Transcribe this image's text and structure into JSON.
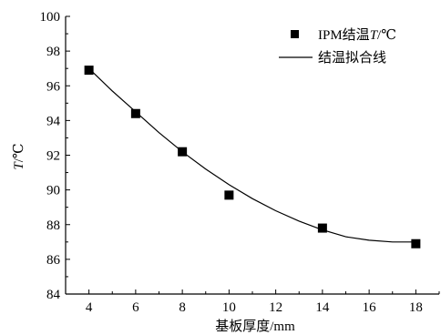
{
  "chart_data": {
    "type": "scatter",
    "xlabel": "基板厚度/mm",
    "ylabel_italic": "T",
    "ylabel_unit": "/℃",
    "xlim": [
      3,
      19
    ],
    "ylim": [
      84,
      100
    ],
    "xticks": [
      4,
      6,
      8,
      10,
      12,
      14,
      16,
      18
    ],
    "yticks": [
      84,
      86,
      88,
      90,
      92,
      94,
      96,
      98,
      100
    ],
    "grid": false,
    "legend_position": "top-right",
    "series": [
      {
        "name_prefix": "IPM结温",
        "name_italic": "T",
        "name_suffix": "/℃",
        "kind": "markers",
        "marker": "square",
        "color": "#000000",
        "points": [
          {
            "x": 4,
            "y": 96.9
          },
          {
            "x": 6,
            "y": 94.4
          },
          {
            "x": 8,
            "y": 92.2
          },
          {
            "x": 10,
            "y": 89.7
          },
          {
            "x": 14,
            "y": 87.8
          },
          {
            "x": 18,
            "y": 86.9
          }
        ]
      },
      {
        "name": "结温拟合线",
        "kind": "line",
        "color": "#000000",
        "points": [
          {
            "x": 4,
            "y": 97.0
          },
          {
            "x": 5,
            "y": 95.7
          },
          {
            "x": 6,
            "y": 94.5
          },
          {
            "x": 7,
            "y": 93.3
          },
          {
            "x": 8,
            "y": 92.2
          },
          {
            "x": 9,
            "y": 91.2
          },
          {
            "x": 10,
            "y": 90.3
          },
          {
            "x": 11,
            "y": 89.5
          },
          {
            "x": 12,
            "y": 88.8
          },
          {
            "x": 13,
            "y": 88.2
          },
          {
            "x": 14,
            "y": 87.7
          },
          {
            "x": 15,
            "y": 87.3
          },
          {
            "x": 16,
            "y": 87.1
          },
          {
            "x": 17,
            "y": 87.0
          },
          {
            "x": 18,
            "y": 87.0
          }
        ]
      }
    ]
  }
}
